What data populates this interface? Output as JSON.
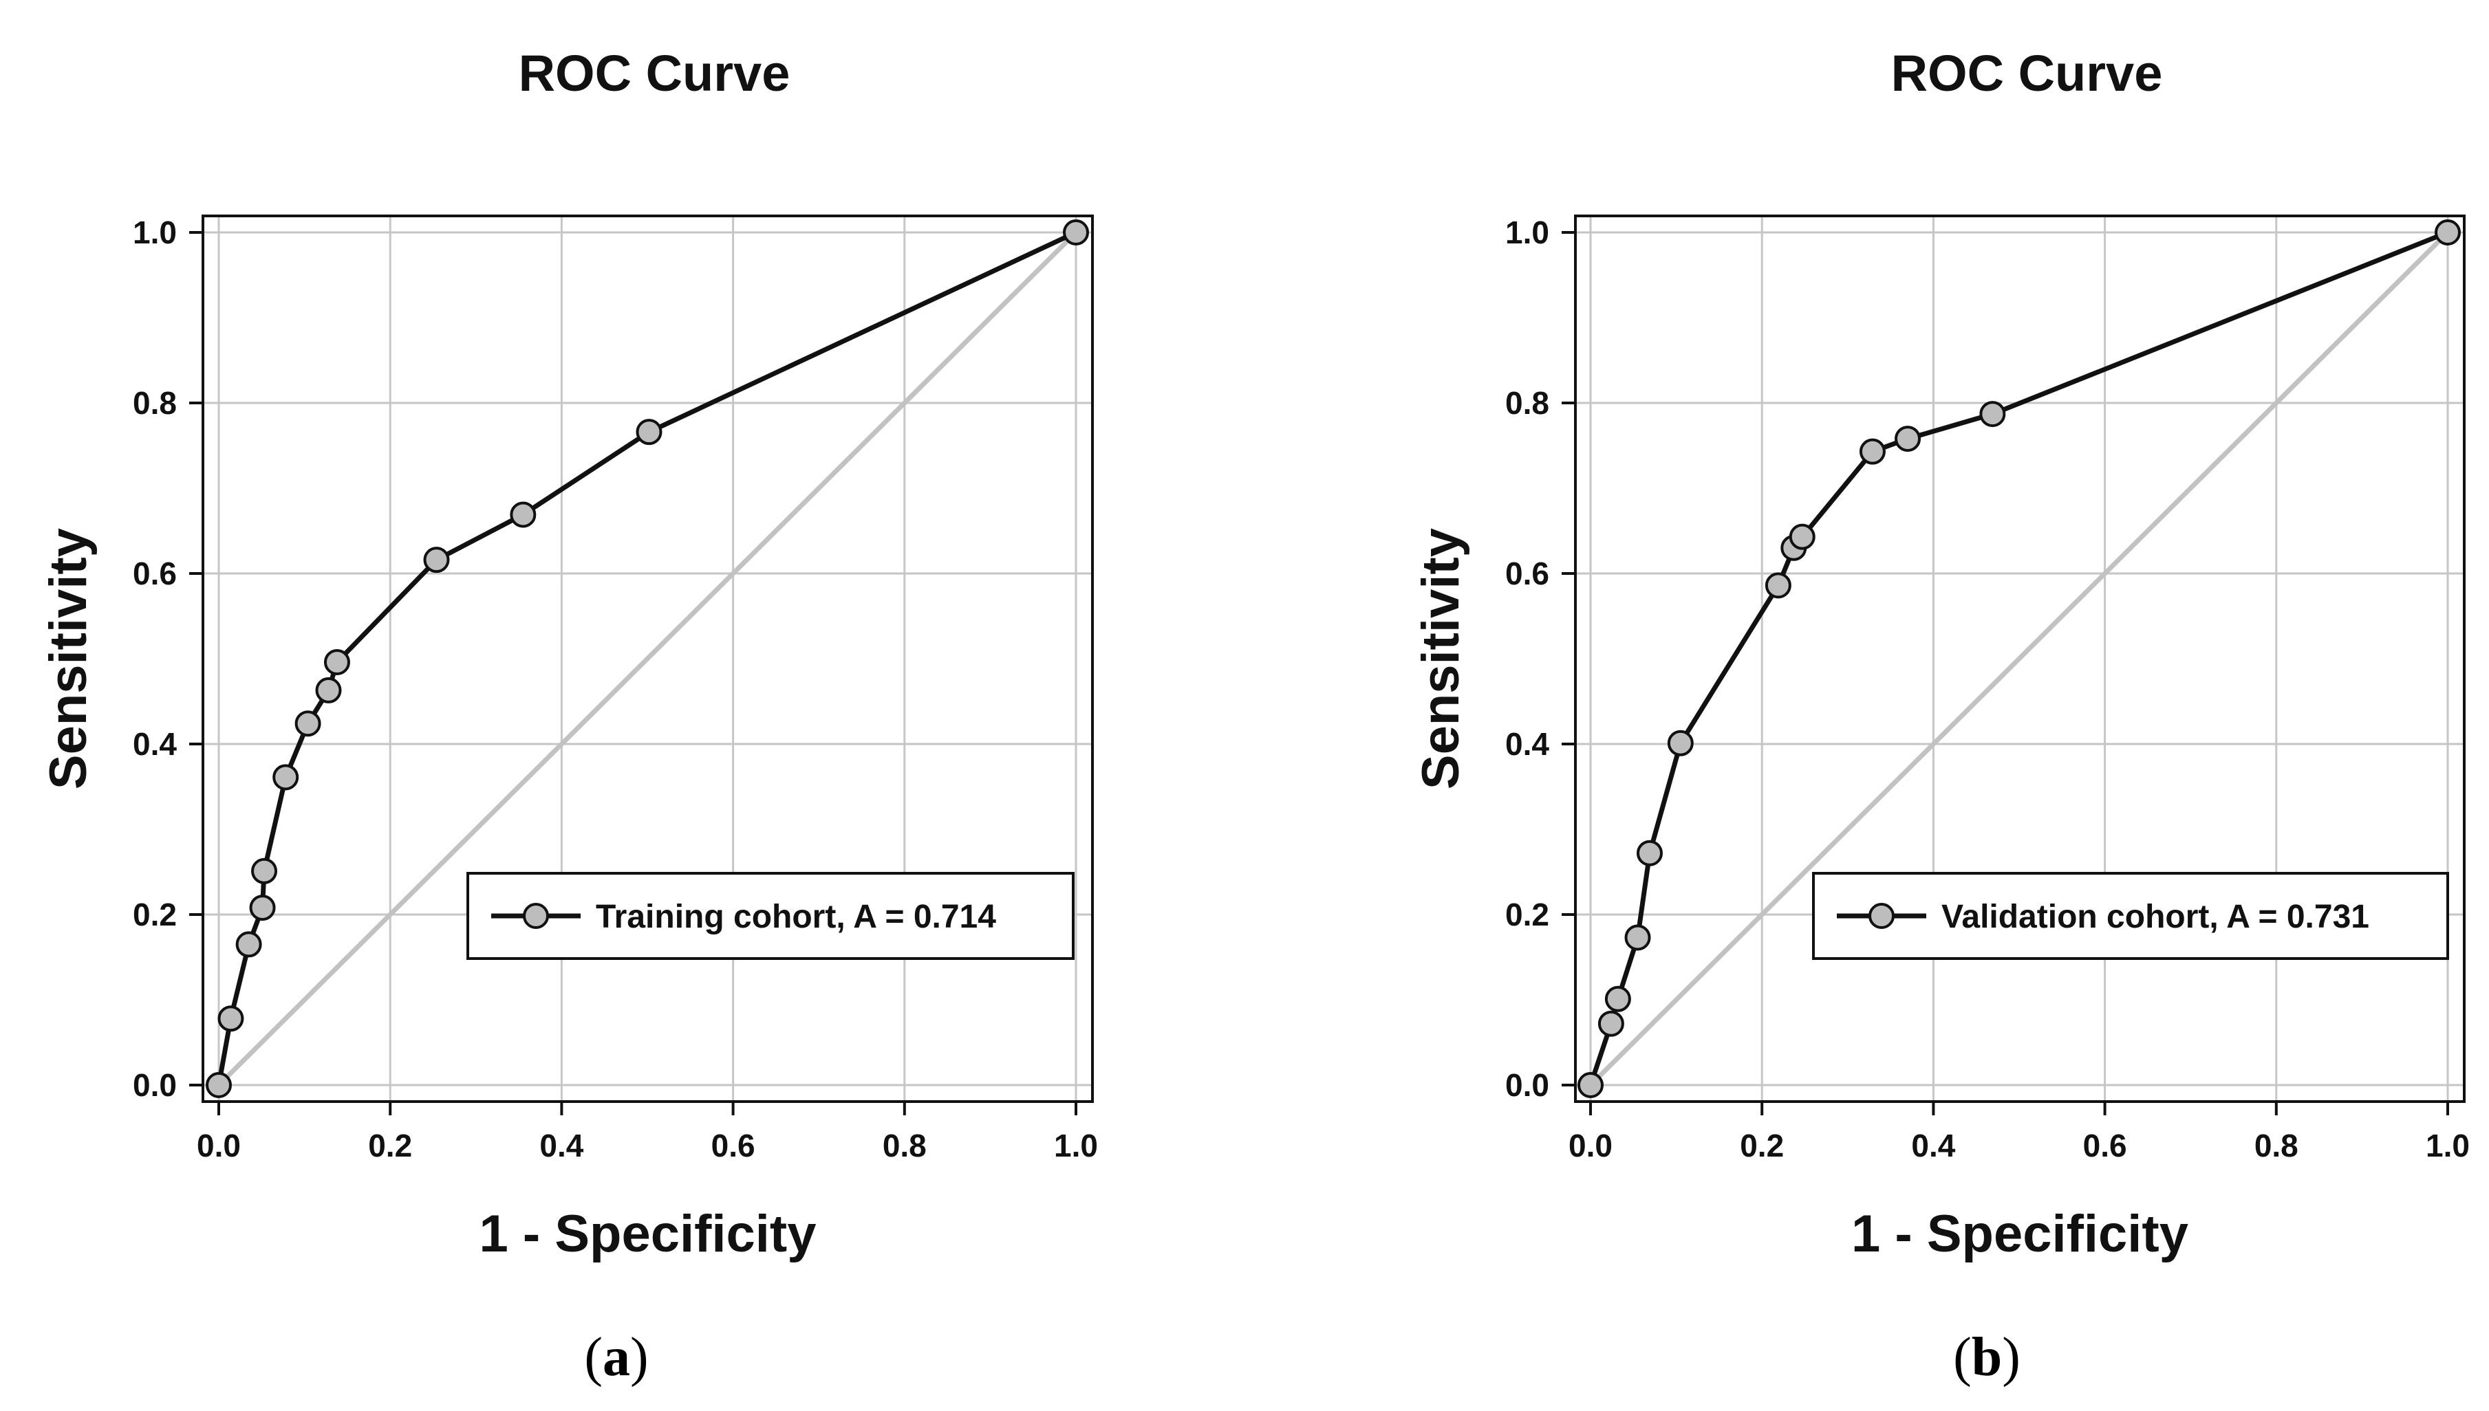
{
  "chart_data": [
    {
      "type": "line",
      "panel": "a",
      "title": "ROC Curve",
      "xlabel": "1 - Specificity",
      "ylabel": "Sensitivity",
      "xlim": [
        0.0,
        1.0
      ],
      "ylim": [
        0.0,
        1.0
      ],
      "xticks": [
        "0.0",
        "0.2",
        "0.4",
        "0.6",
        "0.8",
        "1.0"
      ],
      "yticks": [
        "0.0",
        "0.2",
        "0.4",
        "0.6",
        "0.8",
        "1.0"
      ],
      "grid": true,
      "legend_position": "lower-right",
      "series": [
        {
          "name": "Training cohort, A = 0.714",
          "x": [
            0.0,
            0.014,
            0.035,
            0.051,
            0.053,
            0.078,
            0.104,
            0.128,
            0.138,
            0.254,
            0.355,
            0.502,
            1.0
          ],
          "y": [
            0.0,
            0.078,
            0.165,
            0.208,
            0.251,
            0.361,
            0.424,
            0.463,
            0.496,
            0.616,
            0.669,
            0.766,
            1.0
          ]
        }
      ],
      "reference_line": {
        "x": [
          0.0,
          1.0
        ],
        "y": [
          0.0,
          1.0
        ]
      },
      "colors": {
        "curve": "#111111",
        "marker_fill": "#bdbdbd",
        "reference": "#c2c2c2",
        "grid": "#c6c6c6"
      },
      "caption_open": "(",
      "caption_letter": "a",
      "caption_close": ")"
    },
    {
      "type": "line",
      "panel": "b",
      "title": "ROC Curve",
      "xlabel": "1 - Specificity",
      "ylabel": "Sensitivity",
      "xlim": [
        0.0,
        1.0
      ],
      "ylim": [
        0.0,
        1.0
      ],
      "xticks": [
        "0.0",
        "0.2",
        "0.4",
        "0.6",
        "0.8",
        "1.0"
      ],
      "yticks": [
        "0.0",
        "0.2",
        "0.4",
        "0.6",
        "0.8",
        "1.0"
      ],
      "grid": true,
      "legend_position": "lower-right",
      "series": [
        {
          "name": "Validation cohort, A = 0.731",
          "x": [
            0.0,
            0.024,
            0.032,
            0.055,
            0.069,
            0.105,
            0.219,
            0.237,
            0.247,
            0.329,
            0.37,
            0.469,
            1.0
          ],
          "y": [
            0.0,
            0.072,
            0.101,
            0.173,
            0.272,
            0.401,
            0.586,
            0.63,
            0.643,
            0.743,
            0.758,
            0.787,
            1.0
          ]
        }
      ],
      "reference_line": {
        "x": [
          0.0,
          1.0
        ],
        "y": [
          0.0,
          1.0
        ]
      },
      "colors": {
        "curve": "#111111",
        "marker_fill": "#bdbdbd",
        "reference": "#c2c2c2",
        "grid": "#c6c6c6"
      },
      "caption_open": "(",
      "caption_letter": "b",
      "caption_close": ")"
    }
  ]
}
